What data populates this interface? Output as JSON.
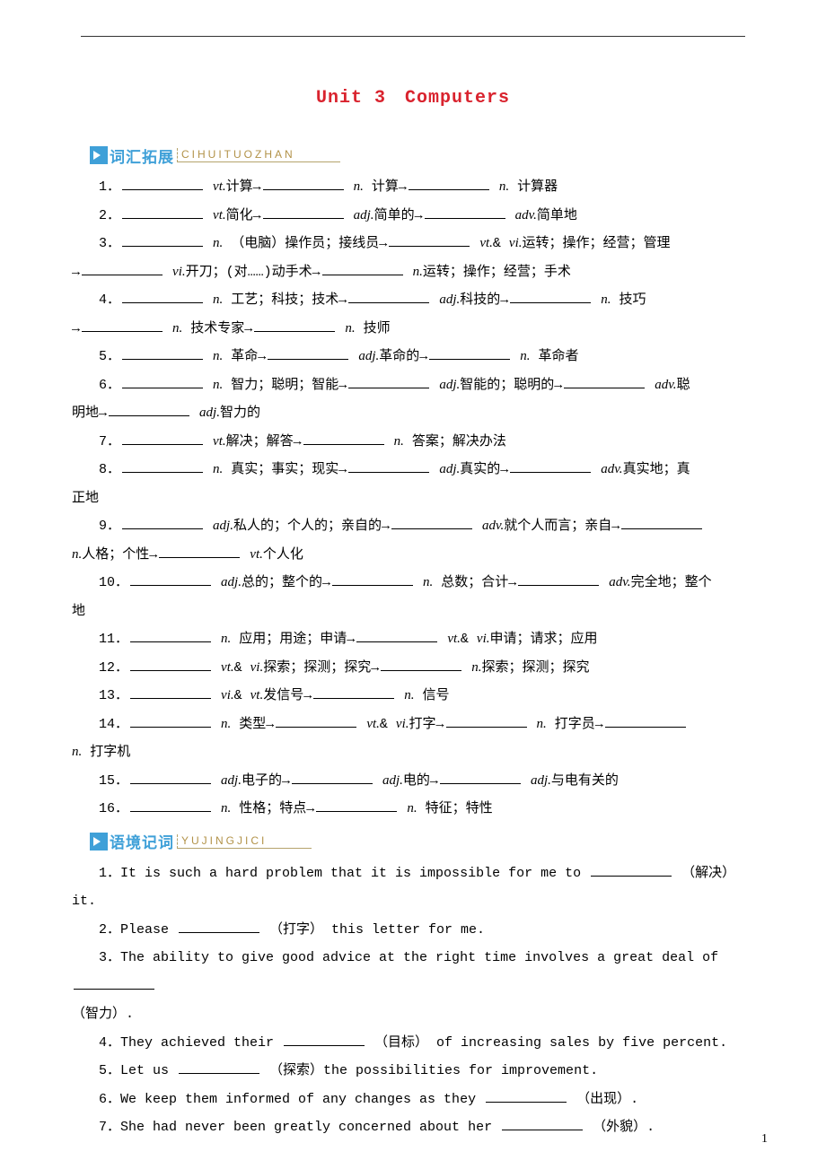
{
  "title": "Unit 3　Computers",
  "sections": [
    {
      "badge_color": "#3fa0d8",
      "title": "词汇拓展",
      "pinyin": "CIHUITUOZHAN"
    },
    {
      "badge_color": "#3fa0d8",
      "title": "语境记词",
      "pinyin": "YUJINGJICI"
    }
  ],
  "vocab_items": [
    {
      "num": "1．",
      "parts": [
        "vt.计算→",
        "n. 计算→",
        "n. 计算器"
      ]
    },
    {
      "num": "2．",
      "parts": [
        "vt.简化→",
        "adj.简单的→",
        "adv.简单地"
      ]
    },
    {
      "num": "3．",
      "parts": [
        "n. （电脑）操作员；接线员→",
        "vt.& vi.运转；操作；经营；管理"
      ],
      "wrap": [
        "→",
        "vi.开刀；(对……)动手术→",
        "n.运转；操作；经营；手术"
      ]
    },
    {
      "num": "4．",
      "parts": [
        "n. 工艺；科技；技术→",
        "adj.科技的→",
        "n. 技巧"
      ],
      "wrap": [
        "→",
        "n. 技术专家→",
        "n. 技师"
      ]
    },
    {
      "num": "5．",
      "parts": [
        "n. 革命→",
        "adj.革命的→",
        "n. 革命者"
      ]
    },
    {
      "num": "6．",
      "parts": [
        "n. 智力；聪明；智能→",
        "adj.智能的；聪明的→",
        "adv.聪"
      ],
      "wrap2": [
        "明地→",
        "adj.智力的"
      ]
    },
    {
      "num": "7．",
      "parts": [
        "vt.解决；解答→",
        "n. 答案；解决办法"
      ]
    },
    {
      "num": "8．",
      "parts": [
        "n. 真实；事实；现实→",
        "adj.真实的→",
        "adv.真实地；真"
      ],
      "wrap2": [
        "正地"
      ]
    },
    {
      "num": "9．",
      "parts": [
        "adj.私人的；个人的；亲自的→",
        "adv.就个人而言；亲自→",
        ""
      ],
      "wrap2": [
        "n.人格；个性→",
        "vt.个人化"
      ]
    },
    {
      "num": "10．",
      "parts": [
        "adj.总的；整个的→",
        "n. 总数；合计→",
        "adv.完全地；整个"
      ],
      "wrap2": [
        "地"
      ]
    },
    {
      "num": "11．",
      "parts": [
        "n. 应用；用途；申请→",
        "vt.& vi.申请；请求；应用"
      ]
    },
    {
      "num": "12．",
      "parts": [
        "vt.& vi.探索；探测；探究→",
        "n.探索；探测；探究"
      ]
    },
    {
      "num": "13．",
      "parts": [
        "vi.& vt.发信号→",
        "n. 信号"
      ]
    },
    {
      "num": "14．",
      "parts": [
        "n. 类型→",
        "vt.& vi.打字→",
        "n. 打字员→",
        ""
      ],
      "wrap2": [
        "n. 打字机"
      ]
    },
    {
      "num": "15．",
      "parts": [
        "adj.电子的→",
        "adj.电的→",
        "adj.与电有关的"
      ]
    },
    {
      "num": "16．",
      "parts": [
        "n. 性格；特点→",
        "n. 特征；特性"
      ]
    }
  ],
  "context_items": [
    {
      "num": "1．",
      "pre": "It is such a hard problem that it is impossible for me to ",
      "post": " （解决） it."
    },
    {
      "num": "2．",
      "pre": "Please ",
      "post": " （打字） this letter for me."
    },
    {
      "num": "3．",
      "pre": "The ability to give good advice at the right time involves a great deal of ",
      "post": "",
      "wrap": "（智力）."
    },
    {
      "num": "4．",
      "pre": "They achieved their ",
      "post": " （目标） of increasing sales by five percent."
    },
    {
      "num": "5．",
      "pre": "Let us ",
      "post": " （探索）the possibilities for improvement."
    },
    {
      "num": "6．",
      "pre": "We keep them informed of any changes as they ",
      "post": " （出现）."
    },
    {
      "num": "7．",
      "pre": "She had never been greatly concerned about her ",
      "post": " （外貌）."
    }
  ],
  "page_number": "1",
  "colors": {
    "title": "#d9232e",
    "section": "#3fa0d8",
    "pinyin": "#b29248",
    "text": "#000000",
    "bg": "#ffffff"
  },
  "typography": {
    "title_fontsize": 20,
    "body_fontsize": 15,
    "line_height": 2.1
  }
}
